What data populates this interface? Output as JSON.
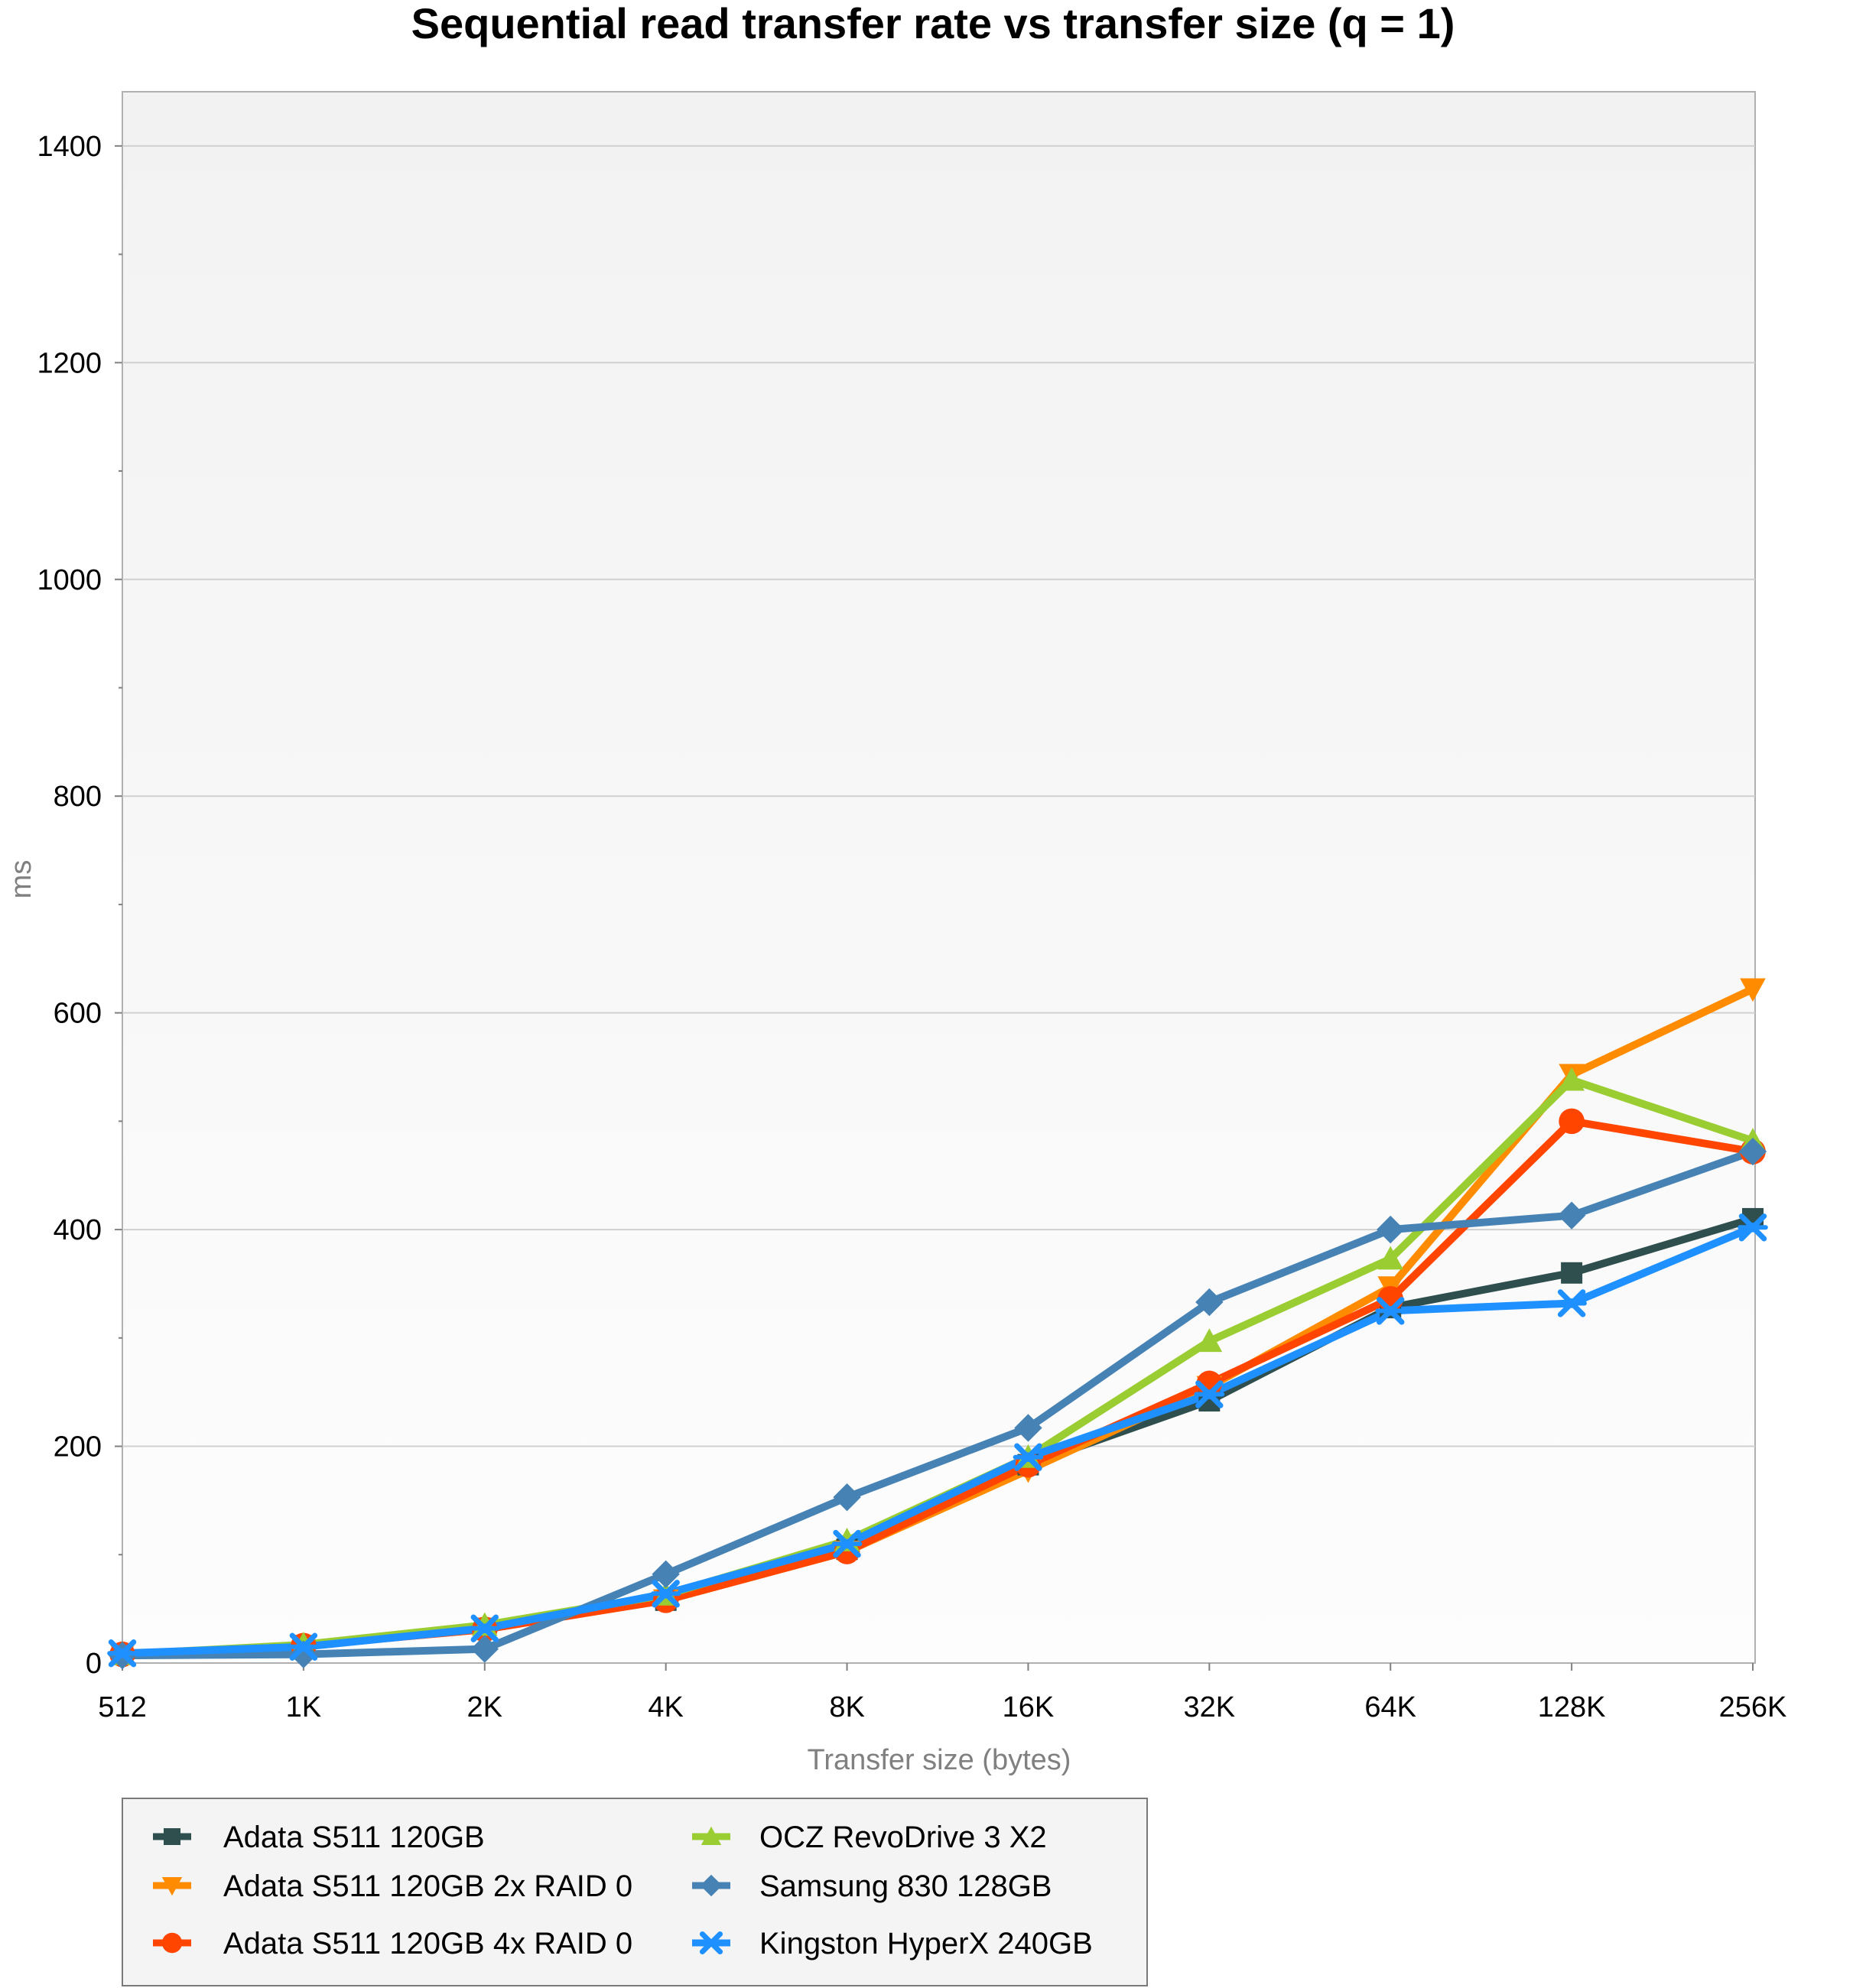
{
  "chart_data": {
    "type": "line",
    "title": "Sequential read transfer rate vs transfer size (q = 1)",
    "xlabel": "Transfer size (bytes)",
    "ylabel": "ms",
    "categories": [
      "512",
      "1K",
      "2K",
      "4K",
      "8K",
      "16K",
      "32K",
      "64K",
      "128K",
      "256K"
    ],
    "ylim": [
      0,
      1450
    ],
    "yticks": [
      0,
      200,
      400,
      600,
      800,
      1000,
      1200,
      1400
    ],
    "grid": true,
    "legend_position": "bottom",
    "series": [
      {
        "name": "Adata S511 120GB",
        "color": "#2f4f4f",
        "marker": "square",
        "values": [
          8,
          16,
          32,
          58,
          105,
          183,
          242,
          328,
          360,
          410
        ]
      },
      {
        "name": "Adata S511 120GB 2x RAID 0",
        "color": "#ff8c00",
        "marker": "triangle-down",
        "values": [
          8,
          16,
          32,
          58,
          103,
          178,
          255,
          347,
          543,
          622
        ]
      },
      {
        "name": "Adata S511 120GB 4x RAID 0",
        "color": "#ff4500",
        "marker": "circle",
        "values": [
          8,
          16,
          31,
          58,
          103,
          183,
          258,
          336,
          500,
          472
        ]
      },
      {
        "name": "OCZ RevoDrive 3 X2",
        "color": "#9acd32",
        "marker": "triangle-up",
        "values": [
          8,
          17,
          35,
          63,
          113,
          190,
          297,
          373,
          538,
          482
        ]
      },
      {
        "name": "Samsung 830 128GB",
        "color": "#4682b4",
        "marker": "diamond",
        "values": [
          7,
          8,
          13,
          82,
          153,
          217,
          333,
          400,
          413,
          472
        ]
      },
      {
        "name": "Kingston HyperX 240GB",
        "color": "#1e90ff",
        "marker": "star",
        "values": [
          9,
          15,
          32,
          64,
          110,
          190,
          248,
          325,
          332,
          402
        ]
      }
    ]
  }
}
